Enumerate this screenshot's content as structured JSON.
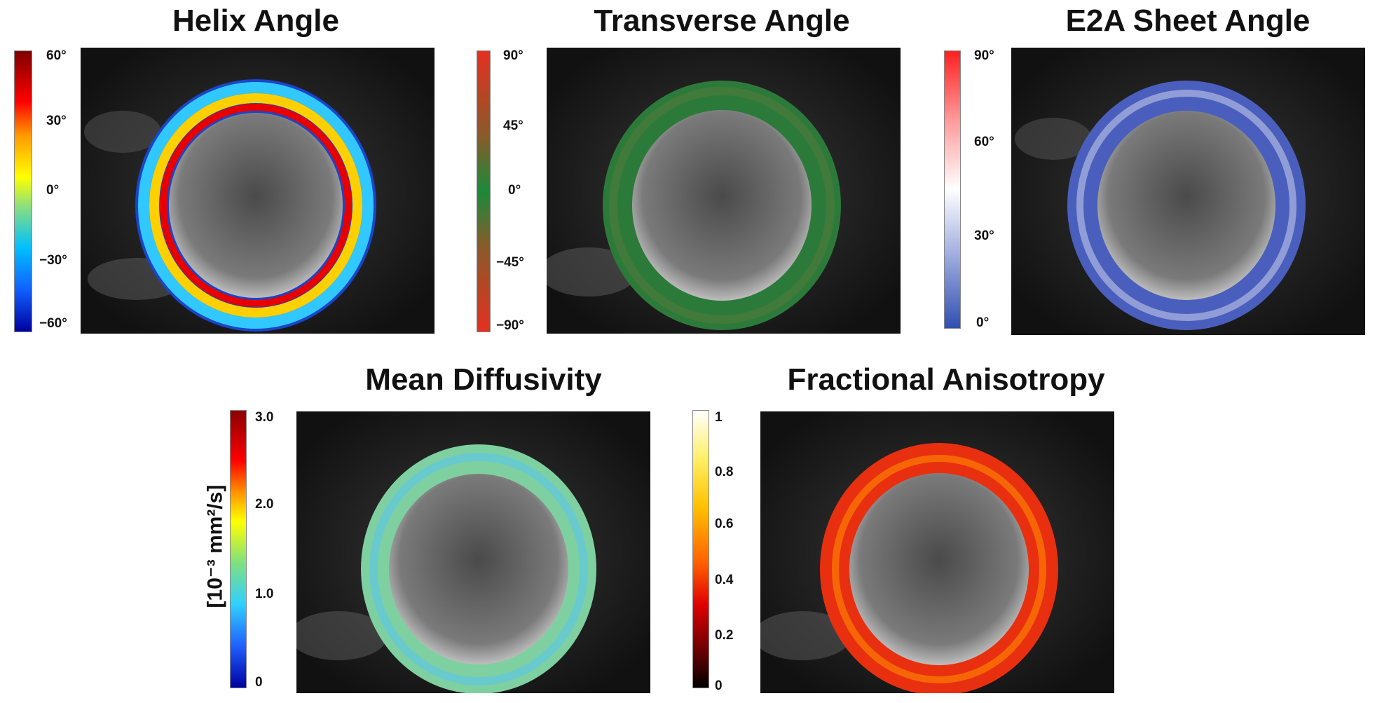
{
  "panels": [
    {
      "id": "helix",
      "title": "Helix Angle",
      "colormap": "jet",
      "ticks": [
        "60°",
        "30°",
        "0°",
        "−30°",
        "−60°"
      ],
      "colors": [
        "#7f0000",
        "#ff0000",
        "#ffff00",
        "#00c0ff",
        "#0000a0"
      ]
    },
    {
      "id": "transverse",
      "title": "Transverse Angle",
      "colormap": "red-green-red",
      "ticks": [
        "90°",
        "45°",
        "0°",
        "−45°",
        "−90°"
      ],
      "colors": [
        "#e53020",
        "#8a5a2a",
        "#1a8a3a",
        "#8a5a2a",
        "#e53020"
      ]
    },
    {
      "id": "e2a",
      "title": "E2A Sheet Angle",
      "colormap": "blue-white-red",
      "ticks": [
        "90°",
        "60°",
        "30°",
        "0°"
      ],
      "colors": [
        "#ff2020",
        "#ffffff",
        "#3050b0"
      ]
    },
    {
      "id": "md",
      "title": "Mean Diffusivity",
      "colormap": "jet",
      "unit": "[10⁻³ mm²/s]",
      "ticks": [
        "3.0",
        "2.0",
        "1.0",
        "0"
      ],
      "colors": [
        "#8b0000",
        "#ff0000",
        "#ffff00",
        "#30d0ff",
        "#0000a0"
      ]
    },
    {
      "id": "fa",
      "title": "Fractional Anisotropy",
      "colormap": "hot",
      "ticks": [
        "1",
        "0.8",
        "0.6",
        "0.4",
        "0.2",
        "0"
      ],
      "colors": [
        "#ffffff",
        "#ffe000",
        "#ff8000",
        "#ff2000",
        "#800000",
        "#000000"
      ]
    }
  ]
}
